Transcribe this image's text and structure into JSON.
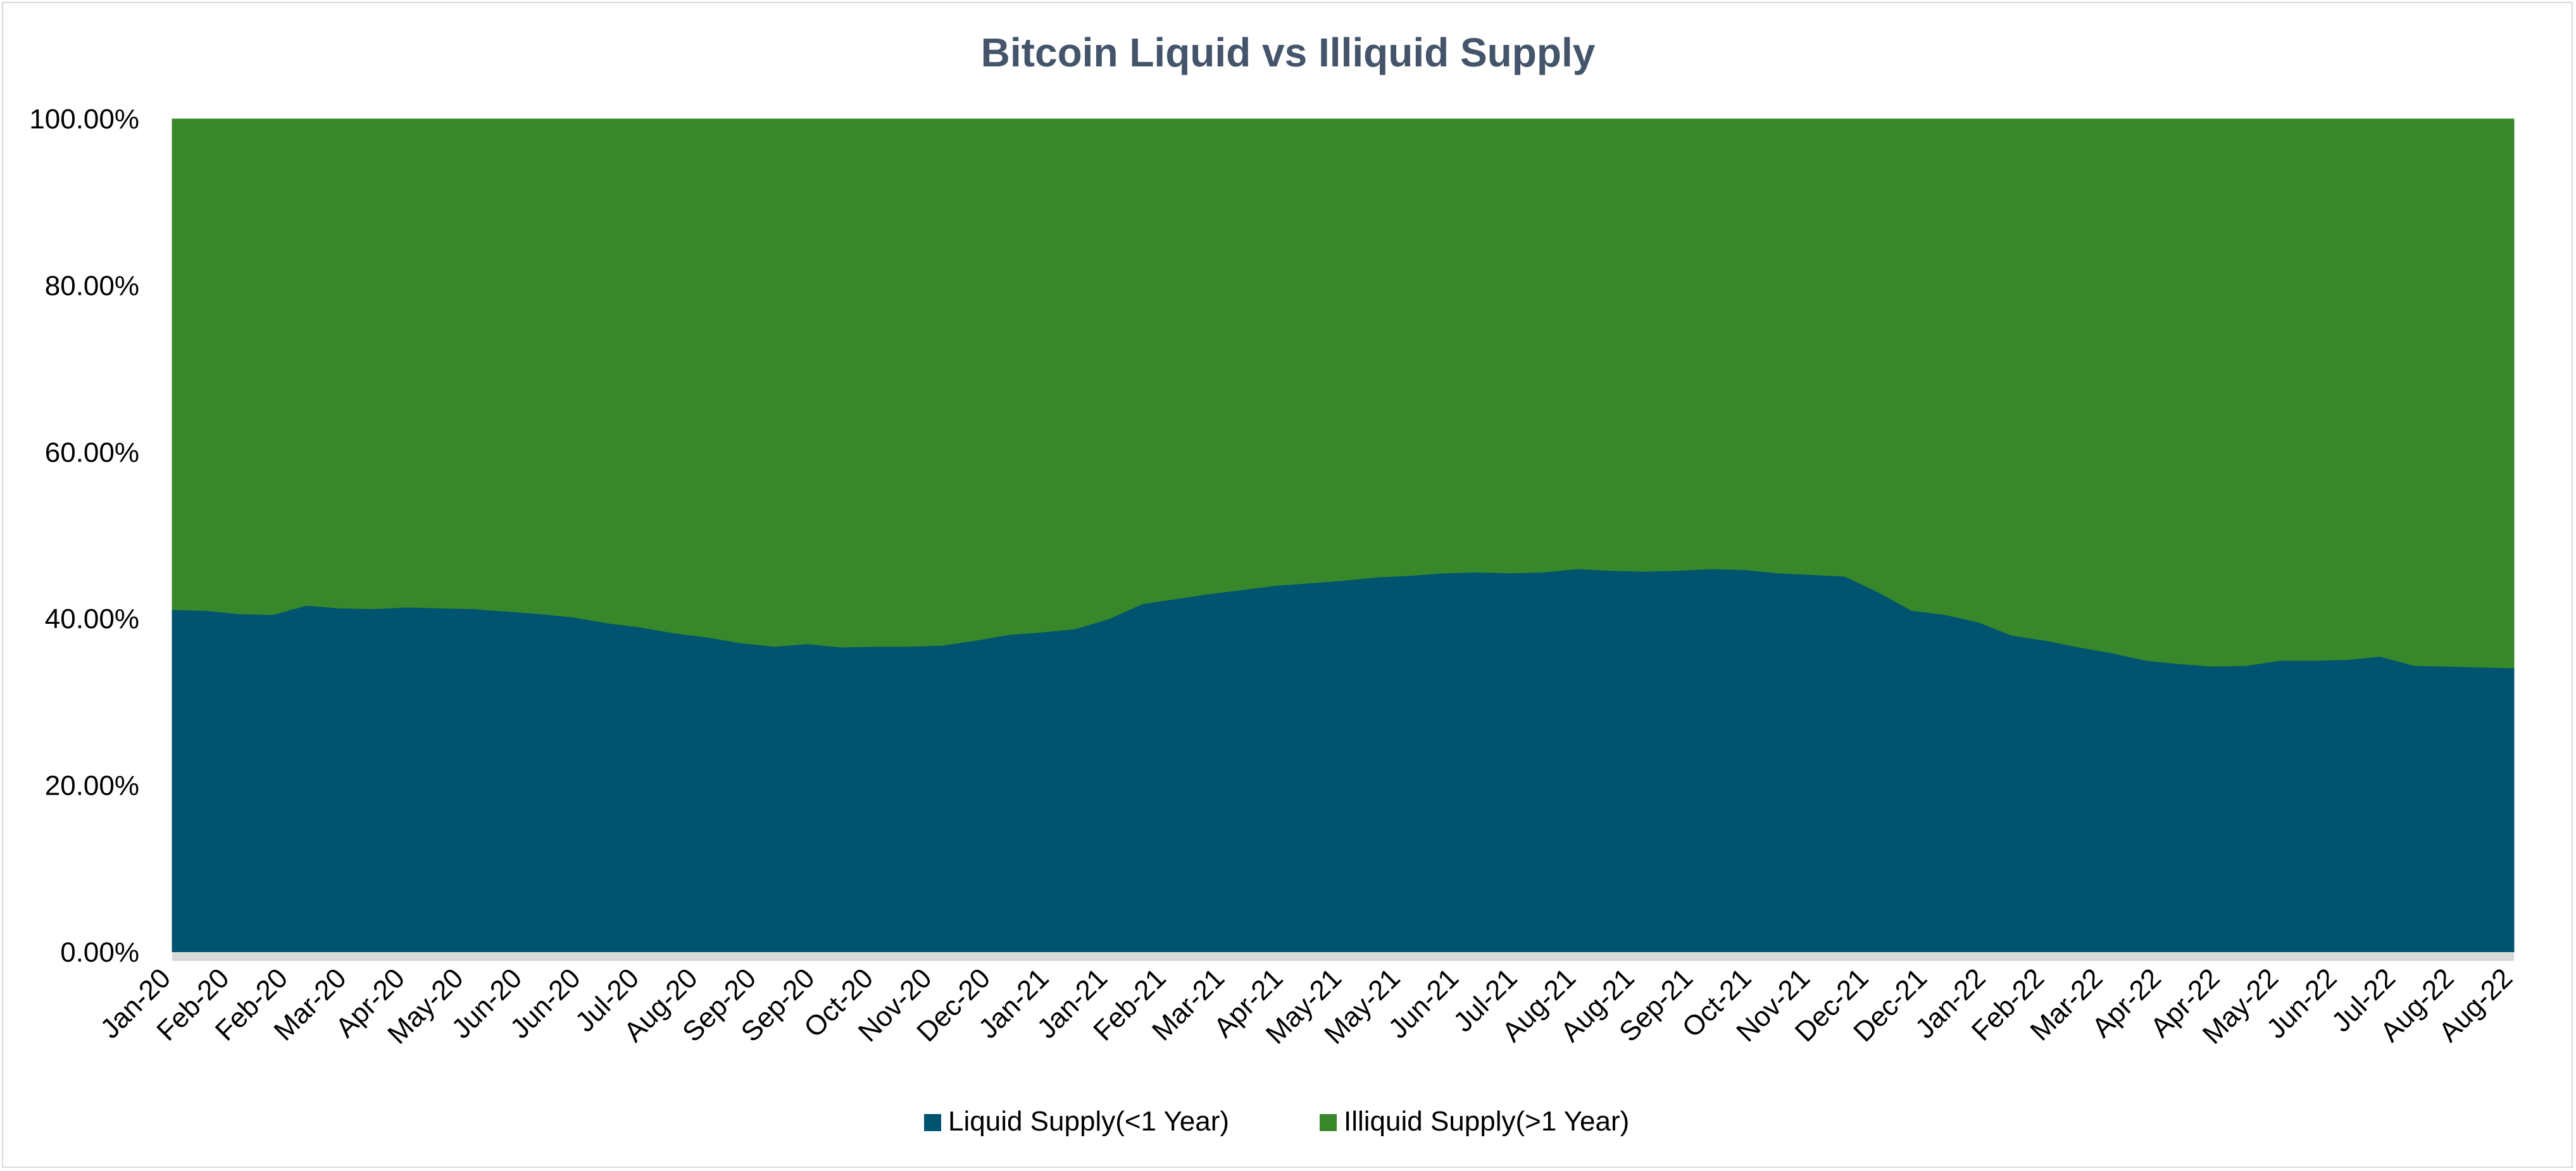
{
  "chart_data": {
    "type": "area",
    "stacked": true,
    "percent": true,
    "title": "Bitcoin Liquid vs Illiquid Supply",
    "xlabel": "",
    "ylabel": "",
    "ylim": [
      0,
      100
    ],
    "y_ticks": [
      "0.00%",
      "20.00%",
      "40.00%",
      "60.00%",
      "80.00%",
      "100.00%"
    ],
    "x_tick_labels": [
      "Jan-20",
      "Feb-20",
      "Feb-20",
      "Mar-20",
      "Apr-20",
      "May-20",
      "Jun-20",
      "Jun-20",
      "Jul-20",
      "Aug-20",
      "Sep-20",
      "Sep-20",
      "Oct-20",
      "Nov-20",
      "Dec-20",
      "Jan-21",
      "Jan-21",
      "Feb-21",
      "Mar-21",
      "Apr-21",
      "May-21",
      "May-21",
      "Jun-21",
      "Jul-21",
      "Aug-21",
      "Aug-21",
      "Sep-21",
      "Oct-21",
      "Nov-21",
      "Dec-21",
      "Dec-21",
      "Jan-22",
      "Feb-22",
      "Mar-22",
      "Apr-22",
      "Apr-22",
      "May-22",
      "Jun-22",
      "Jul-22",
      "Aug-22",
      "Aug-22"
    ],
    "legend_position": "bottom-center",
    "grid": false,
    "series": [
      {
        "name": "Liquid Supply(<1 Year)",
        "color": "#00546F",
        "values": [
          41.1,
          41.0,
          40.6,
          40.5,
          41.6,
          41.3,
          41.2,
          41.4,
          41.3,
          41.2,
          40.9,
          40.6,
          40.2,
          39.5,
          39.0,
          38.3,
          37.8,
          37.1,
          36.7,
          37.0,
          36.6,
          36.7,
          36.7,
          36.8,
          37.4,
          38.1,
          38.4,
          38.8,
          40.0,
          41.8,
          42.4,
          43.0,
          43.5,
          44.0,
          44.3,
          44.6,
          45.0,
          45.2,
          45.5,
          45.6,
          45.5,
          45.6,
          46.0,
          45.8,
          45.7,
          45.8,
          46.0,
          45.9,
          45.5,
          45.3,
          45.1,
          43.2,
          41.0,
          40.5,
          39.6,
          38.0,
          37.4,
          36.6,
          35.9,
          35.0,
          34.6,
          34.3,
          34.4,
          35.0,
          35.0,
          35.1,
          35.5,
          34.4,
          34.3,
          34.2,
          34.1
        ]
      },
      {
        "name": "Illiquid Supply(>1 Year)",
        "color": "#38882B",
        "values": [
          58.9,
          59.0,
          59.4,
          59.5,
          58.4,
          58.7,
          58.8,
          58.6,
          58.7,
          58.8,
          59.1,
          59.4,
          59.8,
          60.5,
          61.0,
          61.7,
          62.2,
          62.9,
          63.3,
          63.0,
          63.4,
          63.3,
          63.3,
          63.2,
          62.6,
          61.9,
          61.6,
          61.2,
          60.0,
          58.2,
          57.6,
          57.0,
          56.5,
          56.0,
          55.7,
          55.4,
          55.0,
          54.8,
          54.5,
          54.4,
          54.5,
          54.4,
          54.0,
          54.2,
          54.3,
          54.2,
          54.0,
          54.1,
          54.5,
          54.7,
          54.9,
          56.8,
          59.0,
          59.5,
          60.4,
          62.0,
          62.6,
          63.4,
          64.1,
          65.0,
          65.4,
          65.7,
          65.6,
          65.0,
          65.0,
          64.9,
          64.5,
          65.6,
          65.7,
          65.8,
          65.9
        ]
      }
    ]
  }
}
